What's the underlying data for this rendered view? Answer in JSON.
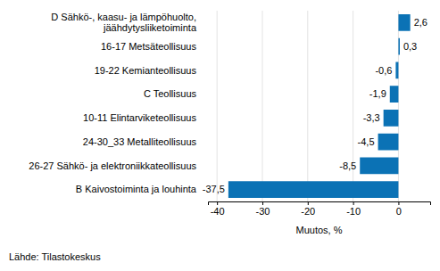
{
  "chart_data": {
    "type": "bar",
    "orientation": "horizontal",
    "categories": [
      "D Sähkö-, kaasu- ja lämpöhuolto, jäähdytysliiketoiminta",
      "16-17 Metsäteollisuus",
      "19-22 Kemianteollisuus",
      "C Teollisuus",
      "10-11 Elintarviketeollisuus",
      "24-30_33 Metalliteollisuus",
      "26-27 Sähkö- ja elektroniikkateollisuus",
      "B Kaivostoiminta ja louhinta"
    ],
    "values": [
      2.6,
      0.3,
      -0.6,
      -1.9,
      -3.3,
      -4.5,
      -8.5,
      -37.5
    ],
    "value_labels": [
      "2,6",
      "0,3",
      "-0,6",
      "-1,9",
      "-3,3",
      "-4,5",
      "-8,5",
      "-37,5"
    ],
    "data_labels": true,
    "color": "#0b72b5",
    "xlabel": "Muutos, %",
    "xlim": [
      -42,
      7
    ],
    "xticks": [
      -40,
      -30,
      -20,
      -10,
      0
    ],
    "grid": true,
    "source": "Lähde: Tilastokeskus"
  }
}
